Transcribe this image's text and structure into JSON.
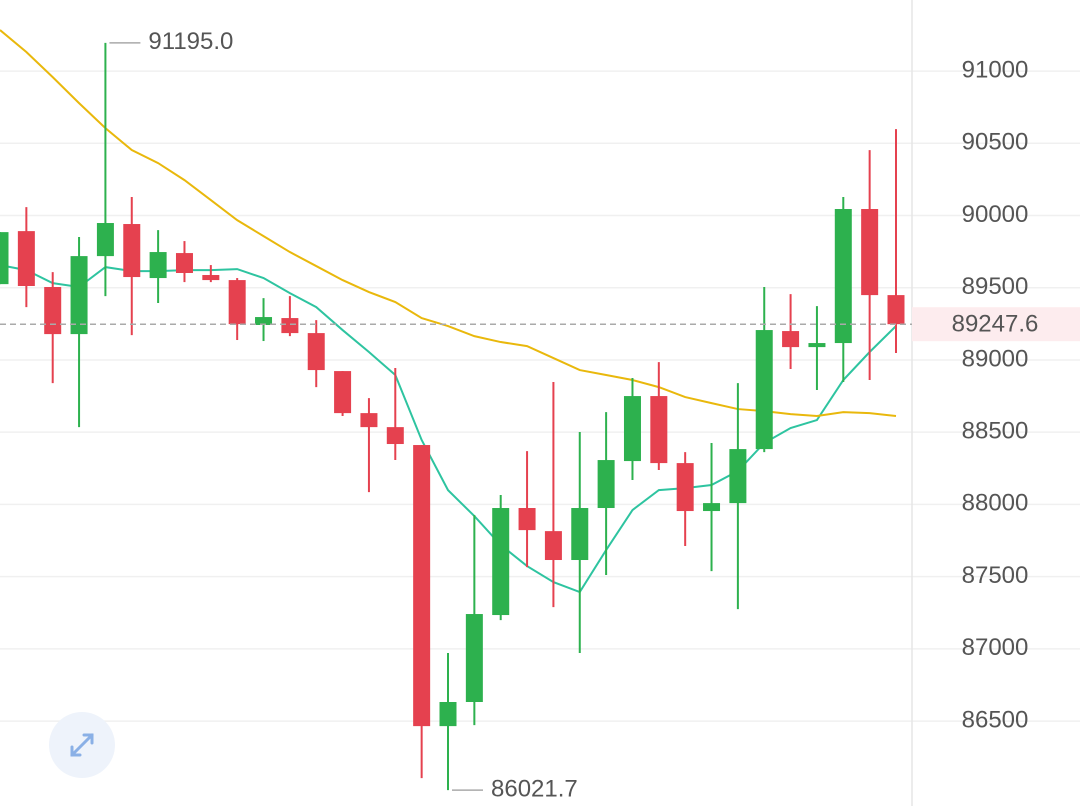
{
  "chart_data": {
    "type": "candlestick",
    "ylim": [
      85912,
      91492
    ],
    "yticks": [
      86500,
      87000,
      87500,
      88000,
      88500,
      89000,
      89500,
      90000,
      90500,
      91000
    ],
    "grid": true,
    "up_color": "#2db14e",
    "down_color": "#e5414f",
    "open": [
      89525,
      89892,
      89505,
      89179,
      89719,
      89941,
      89567,
      89740,
      89588,
      89553,
      89242,
      89290,
      89186,
      88923,
      88632,
      88535,
      88411,
      86465,
      86632,
      87234,
      87975,
      87815,
      87615,
      87975,
      88300,
      88750,
      88286,
      87954,
      88009,
      88383,
      89200,
      89089,
      89117,
      90045,
      89449
    ],
    "high": [
      89885,
      90058,
      89608,
      89851,
      91195,
      90128,
      89899,
      89823,
      89657,
      89567,
      89428,
      89442,
      89276,
      88923,
      88736,
      88944,
      88411,
      86971,
      87926,
      88065,
      88369,
      88847,
      88501,
      88639,
      88875,
      88985,
      88362,
      88425,
      88840,
      89505,
      89456,
      89373,
      90128,
      90453,
      90598
    ],
    "low": [
      89525,
      89366,
      88840,
      88535,
      89442,
      89172,
      89394,
      89539,
      89539,
      89138,
      89131,
      89165,
      88812,
      88612,
      88085,
      88307,
      86105,
      86021.7,
      86472,
      87199,
      87566,
      87289,
      86971,
      87511,
      88169,
      88238,
      87712,
      87538,
      87275,
      88362,
      88937,
      88792,
      88847,
      88861,
      89048
    ],
    "close": [
      89885,
      89512,
      89179,
      89719,
      89948,
      89574,
      89747,
      89602,
      89553,
      89248,
      89297,
      89186,
      88930,
      88632,
      88535,
      88418,
      86465,
      86632,
      87241,
      87975,
      87822,
      87615,
      87975,
      88307,
      88750,
      88286,
      87954,
      88009,
      88383,
      89207,
      89089,
      89117,
      90045,
      89449,
      89247.6
    ],
    "series": [
      {
        "color": "#2ec4a0",
        "values": [
          89657,
          89622,
          89532,
          89505,
          89643,
          89615,
          89615,
          89622,
          89622,
          89629,
          89567,
          89463,
          89366,
          89207,
          89055,
          88896,
          88446,
          88099,
          87919,
          87719,
          87573,
          87462,
          87393,
          87684,
          87961,
          88099,
          88113,
          88134,
          88231,
          88425,
          88529,
          88584,
          88861,
          89055,
          89235
        ]
      },
      {
        "color": "#e9b80c",
        "values": [
          91284,
          91132,
          90958,
          90778,
          90605,
          90453,
          90363,
          90245,
          90107,
          89968,
          89857,
          89747,
          89650,
          89553,
          89470,
          89401,
          89290,
          89235,
          89165,
          89124,
          89096,
          89013,
          88930,
          88896,
          88861,
          88812,
          88743,
          88701,
          88660,
          88646,
          88625,
          88612,
          88639,
          88632,
          88612
        ]
      }
    ],
    "high_label": "91195.0",
    "low_label": "86021.7",
    "last_label": "89247.6"
  }
}
